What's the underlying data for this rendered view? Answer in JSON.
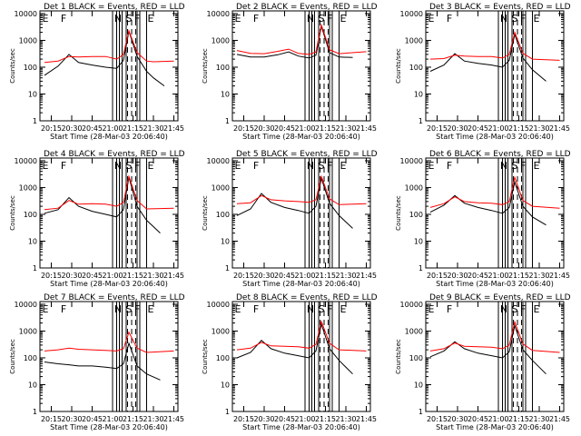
{
  "shared": {
    "title_suffix": "BLACK = Events, RED = LLD",
    "ylabel": "Counts/sec",
    "xlabel": "Start Time (28-Mar-03 20:06:40)",
    "x_ticks": [
      "20:15",
      "20:30",
      "20:45",
      "21:00",
      "21:15",
      "21:30",
      "21:45"
    ],
    "y_ticks": [
      "1",
      "10",
      "100",
      "1000",
      "10000"
    ],
    "interval_labels": [
      "E",
      "F",
      "N",
      "S",
      "F",
      "E"
    ],
    "colors": {
      "events": "#000000",
      "lld": "#ff0000"
    }
  },
  "chart_data": [
    {
      "type": "line",
      "title": "Det 1",
      "series": [
        {
          "name": "Events",
          "x": [
            "20:10",
            "20:20",
            "20:28",
            "20:35",
            "20:45",
            "20:55",
            "21:03",
            "21:08",
            "21:12",
            "21:18",
            "21:25",
            "21:30",
            "21:38"
          ],
          "y": [
            50,
            110,
            300,
            150,
            120,
            100,
            90,
            180,
            2200,
            250,
            70,
            40,
            20
          ]
        },
        {
          "name": "LLD",
          "x": [
            "20:10",
            "20:20",
            "20:28",
            "20:35",
            "20:45",
            "20:55",
            "21:03",
            "21:08",
            "21:12",
            "21:18",
            "21:25",
            "21:30",
            "21:45"
          ],
          "y": [
            150,
            170,
            250,
            240,
            250,
            250,
            200,
            300,
            2300,
            350,
            170,
            160,
            170
          ]
        }
      ]
    },
    {
      "type": "line",
      "title": "Det 2",
      "series": [
        {
          "name": "Events",
          "x": [
            "20:10",
            "20:20",
            "20:30",
            "20:40",
            "20:48",
            "20:55",
            "21:03",
            "21:08",
            "21:12",
            "21:18",
            "21:25",
            "21:35"
          ],
          "y": [
            300,
            240,
            240,
            290,
            370,
            260,
            220,
            280,
            3400,
            350,
            240,
            230
          ]
        },
        {
          "name": "LLD",
          "x": [
            "20:10",
            "20:20",
            "20:30",
            "20:40",
            "20:48",
            "20:55",
            "21:03",
            "21:08",
            "21:12",
            "21:18",
            "21:25",
            "21:45"
          ],
          "y": [
            420,
            330,
            320,
            390,
            470,
            330,
            300,
            370,
            3800,
            450,
            320,
            380
          ]
        }
      ]
    },
    {
      "type": "line",
      "title": "Det 3",
      "series": [
        {
          "name": "Events",
          "x": [
            "20:10",
            "20:20",
            "20:28",
            "20:35",
            "20:45",
            "20:55",
            "21:03",
            "21:08",
            "21:12",
            "21:18",
            "21:25",
            "21:35"
          ],
          "y": [
            70,
            120,
            320,
            170,
            140,
            120,
            100,
            180,
            1700,
            220,
            80,
            30
          ]
        },
        {
          "name": "LLD",
          "x": [
            "20:10",
            "20:20",
            "20:28",
            "20:35",
            "20:45",
            "20:55",
            "21:03",
            "21:08",
            "21:12",
            "21:18",
            "21:25",
            "21:45"
          ],
          "y": [
            200,
            210,
            280,
            260,
            250,
            250,
            220,
            300,
            2000,
            330,
            200,
            180
          ]
        }
      ]
    },
    {
      "type": "line",
      "title": "Det 4",
      "series": [
        {
          "name": "Events",
          "x": [
            "20:10",
            "20:20",
            "20:28",
            "20:35",
            "20:45",
            "20:55",
            "21:03",
            "21:08",
            "21:12",
            "21:18",
            "21:25",
            "21:35"
          ],
          "y": [
            110,
            150,
            420,
            200,
            130,
            100,
            80,
            150,
            2400,
            200,
            60,
            20
          ]
        },
        {
          "name": "LLD",
          "x": [
            "20:10",
            "20:20",
            "20:28",
            "20:35",
            "20:45",
            "20:55",
            "21:03",
            "21:08",
            "21:12",
            "21:18",
            "21:25",
            "21:45"
          ],
          "y": [
            150,
            170,
            330,
            240,
            250,
            240,
            200,
            280,
            2600,
            330,
            160,
            170
          ]
        }
      ]
    },
    {
      "type": "line",
      "title": "Det 5",
      "series": [
        {
          "name": "Events",
          "x": [
            "20:10",
            "20:20",
            "20:28",
            "20:35",
            "20:45",
            "20:55",
            "21:03",
            "21:08",
            "21:12",
            "21:18",
            "21:25",
            "21:35"
          ],
          "y": [
            90,
            160,
            600,
            280,
            180,
            140,
            110,
            200,
            2200,
            260,
            90,
            30
          ]
        },
        {
          "name": "LLD",
          "x": [
            "20:10",
            "20:20",
            "20:28",
            "20:35",
            "20:45",
            "20:55",
            "21:03",
            "21:08",
            "21:12",
            "21:18",
            "21:25",
            "21:45"
          ],
          "y": [
            250,
            270,
            500,
            350,
            320,
            300,
            280,
            350,
            2600,
            380,
            230,
            250
          ]
        }
      ]
    },
    {
      "type": "line",
      "title": "Det 6",
      "series": [
        {
          "name": "Events",
          "x": [
            "20:10",
            "20:20",
            "20:28",
            "20:35",
            "20:45",
            "20:55",
            "21:03",
            "21:08",
            "21:12",
            "21:18",
            "21:25",
            "21:35"
          ],
          "y": [
            120,
            220,
            500,
            260,
            180,
            140,
            110,
            180,
            1600,
            200,
            80,
            40
          ]
        },
        {
          "name": "LLD",
          "x": [
            "20:10",
            "20:20",
            "20:28",
            "20:35",
            "20:45",
            "20:55",
            "21:03",
            "21:08",
            "21:12",
            "21:18",
            "21:25",
            "21:45"
          ],
          "y": [
            180,
            250,
            450,
            300,
            270,
            260,
            230,
            300,
            2400,
            330,
            200,
            170
          ]
        }
      ]
    },
    {
      "type": "line",
      "title": "Det 7",
      "series": [
        {
          "name": "Events",
          "x": [
            "20:10",
            "20:20",
            "20:28",
            "20:35",
            "20:45",
            "20:55",
            "21:03",
            "21:08",
            "21:12",
            "21:18",
            "21:25",
            "21:35"
          ],
          "y": [
            70,
            60,
            55,
            50,
            50,
            45,
            40,
            60,
            350,
            50,
            25,
            15
          ]
        },
        {
          "name": "LLD",
          "x": [
            "20:10",
            "20:20",
            "20:28",
            "20:35",
            "20:45",
            "20:55",
            "21:03",
            "21:08",
            "21:12",
            "21:18",
            "21:25",
            "21:45"
          ],
          "y": [
            180,
            200,
            230,
            210,
            200,
            190,
            180,
            220,
            900,
            230,
            160,
            180
          ]
        }
      ]
    },
    {
      "type": "line",
      "title": "Det 8",
      "series": [
        {
          "name": "Events",
          "x": [
            "20:10",
            "20:20",
            "20:28",
            "20:35",
            "20:45",
            "20:55",
            "21:03",
            "21:08",
            "21:12",
            "21:18",
            "21:25",
            "21:35"
          ],
          "y": [
            100,
            160,
            450,
            220,
            150,
            120,
            100,
            180,
            1800,
            220,
            80,
            25
          ]
        },
        {
          "name": "LLD",
          "x": [
            "20:10",
            "20:20",
            "20:28",
            "20:35",
            "20:45",
            "20:55",
            "21:03",
            "21:08",
            "21:12",
            "21:18",
            "21:25",
            "21:45"
          ],
          "y": [
            200,
            230,
            380,
            280,
            270,
            260,
            230,
            320,
            2300,
            350,
            200,
            180
          ]
        }
      ]
    },
    {
      "type": "line",
      "title": "Det 9",
      "series": [
        {
          "name": "Events",
          "x": [
            "20:10",
            "20:20",
            "20:28",
            "20:35",
            "20:45",
            "20:55",
            "21:03",
            "21:08",
            "21:12",
            "21:18",
            "21:25",
            "21:35"
          ],
          "y": [
            110,
            180,
            400,
            220,
            150,
            120,
            100,
            170,
            1600,
            200,
            80,
            25
          ]
        },
        {
          "name": "LLD",
          "x": [
            "20:10",
            "20:20",
            "20:28",
            "20:35",
            "20:45",
            "20:55",
            "21:03",
            "21:08",
            "21:12",
            "21:18",
            "21:25",
            "21:45"
          ],
          "y": [
            180,
            220,
            360,
            270,
            260,
            250,
            220,
            300,
            2200,
            330,
            190,
            160
          ]
        }
      ]
    }
  ]
}
